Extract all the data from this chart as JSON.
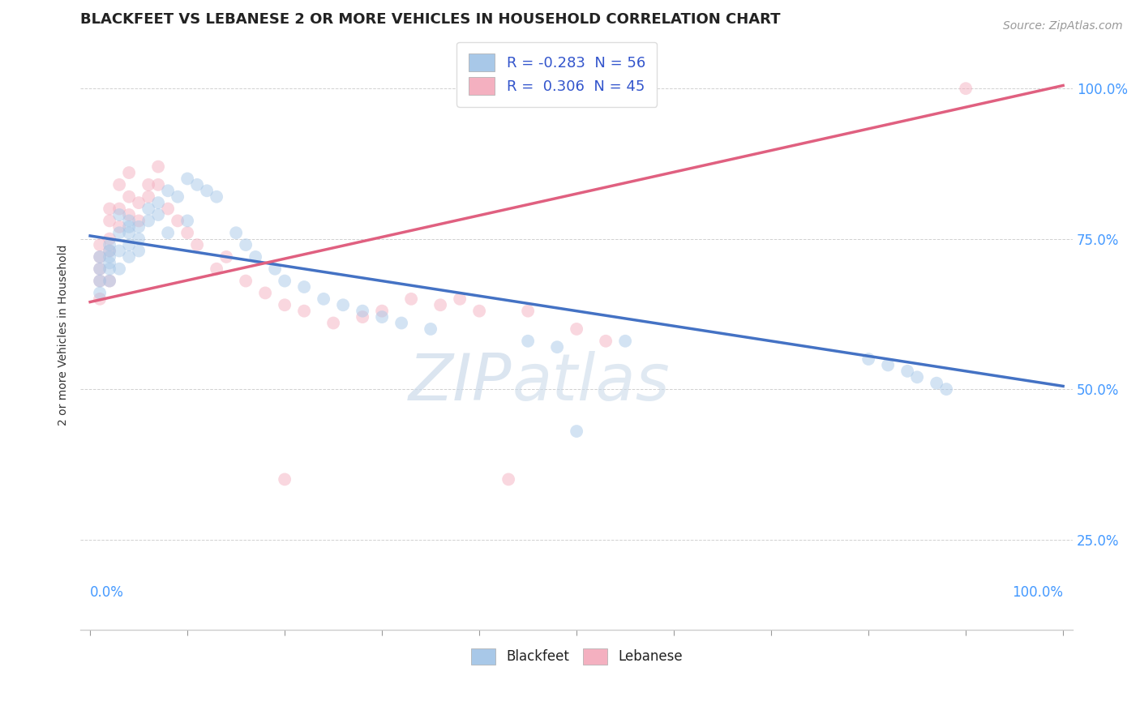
{
  "title": "BLACKFEET VS LEBANESE 2 OR MORE VEHICLES IN HOUSEHOLD CORRELATION CHART",
  "source": "Source: ZipAtlas.com",
  "ylabel": "2 or more Vehicles in Household",
  "legend_entries": [
    {
      "label": "R = -0.283  N = 56",
      "color": "#a8c8e8"
    },
    {
      "label": "R =  0.306  N = 45",
      "color": "#f4b8c8"
    }
  ],
  "blue_color": "#a8c8e8",
  "pink_color": "#f4b0c0",
  "blue_line_color": "#4472c4",
  "pink_line_color": "#e06080",
  "blue_line_start_y": 0.755,
  "blue_line_end_y": 0.505,
  "pink_line_start_y": 0.645,
  "pink_line_end_y": 1.005,
  "xlim": [
    -0.01,
    1.01
  ],
  "ylim": [
    0.1,
    1.08
  ],
  "ytick_positions": [
    0.25,
    0.5,
    0.75,
    1.0
  ],
  "ytick_labels": [
    "25.0%",
    "50.0%",
    "75.0%",
    "100.0%"
  ],
  "xtick_minor": [
    0.0,
    0.1,
    0.2,
    0.3,
    0.4,
    0.5,
    0.6,
    0.7,
    0.8,
    0.9,
    1.0
  ],
  "title_fontsize": 13,
  "axis_label_fontsize": 10,
  "tick_fontsize": 12,
  "legend_fontsize": 13,
  "source_fontsize": 10,
  "dot_size": 130,
  "dot_alpha": 0.5,
  "blackfeet_x": [
    0.01,
    0.01,
    0.01,
    0.01,
    0.02,
    0.02,
    0.02,
    0.02,
    0.02,
    0.02,
    0.03,
    0.03,
    0.03,
    0.03,
    0.04,
    0.04,
    0.04,
    0.04,
    0.04,
    0.05,
    0.05,
    0.05,
    0.06,
    0.06,
    0.07,
    0.07,
    0.08,
    0.08,
    0.09,
    0.1,
    0.1,
    0.11,
    0.12,
    0.13,
    0.15,
    0.16,
    0.17,
    0.19,
    0.2,
    0.22,
    0.24,
    0.26,
    0.28,
    0.3,
    0.32,
    0.35,
    0.45,
    0.48,
    0.5,
    0.55,
    0.8,
    0.82,
    0.84,
    0.85,
    0.87,
    0.88
  ],
  "blackfeet_y": [
    0.72,
    0.7,
    0.68,
    0.66,
    0.74,
    0.73,
    0.72,
    0.71,
    0.7,
    0.68,
    0.79,
    0.76,
    0.73,
    0.7,
    0.78,
    0.77,
    0.76,
    0.74,
    0.72,
    0.77,
    0.75,
    0.73,
    0.8,
    0.78,
    0.81,
    0.79,
    0.83,
    0.76,
    0.82,
    0.85,
    0.78,
    0.84,
    0.83,
    0.82,
    0.76,
    0.74,
    0.72,
    0.7,
    0.68,
    0.67,
    0.65,
    0.64,
    0.63,
    0.62,
    0.61,
    0.6,
    0.58,
    0.57,
    0.43,
    0.58,
    0.55,
    0.54,
    0.53,
    0.52,
    0.51,
    0.5
  ],
  "lebanese_x": [
    0.01,
    0.01,
    0.01,
    0.01,
    0.01,
    0.02,
    0.02,
    0.02,
    0.02,
    0.02,
    0.03,
    0.03,
    0.03,
    0.04,
    0.04,
    0.04,
    0.05,
    0.05,
    0.06,
    0.06,
    0.07,
    0.07,
    0.08,
    0.09,
    0.1,
    0.11,
    0.13,
    0.14,
    0.16,
    0.18,
    0.2,
    0.22,
    0.25,
    0.28,
    0.3,
    0.33,
    0.36,
    0.38,
    0.4,
    0.43,
    0.45,
    0.5,
    0.53,
    0.2,
    0.9
  ],
  "lebanese_y": [
    0.68,
    0.7,
    0.72,
    0.74,
    0.65,
    0.73,
    0.75,
    0.78,
    0.8,
    0.68,
    0.77,
    0.8,
    0.84,
    0.79,
    0.82,
    0.86,
    0.81,
    0.78,
    0.84,
    0.82,
    0.87,
    0.84,
    0.8,
    0.78,
    0.76,
    0.74,
    0.7,
    0.72,
    0.68,
    0.66,
    0.64,
    0.63,
    0.61,
    0.62,
    0.63,
    0.65,
    0.64,
    0.65,
    0.63,
    0.35,
    0.63,
    0.6,
    0.58,
    0.35,
    1.0
  ]
}
